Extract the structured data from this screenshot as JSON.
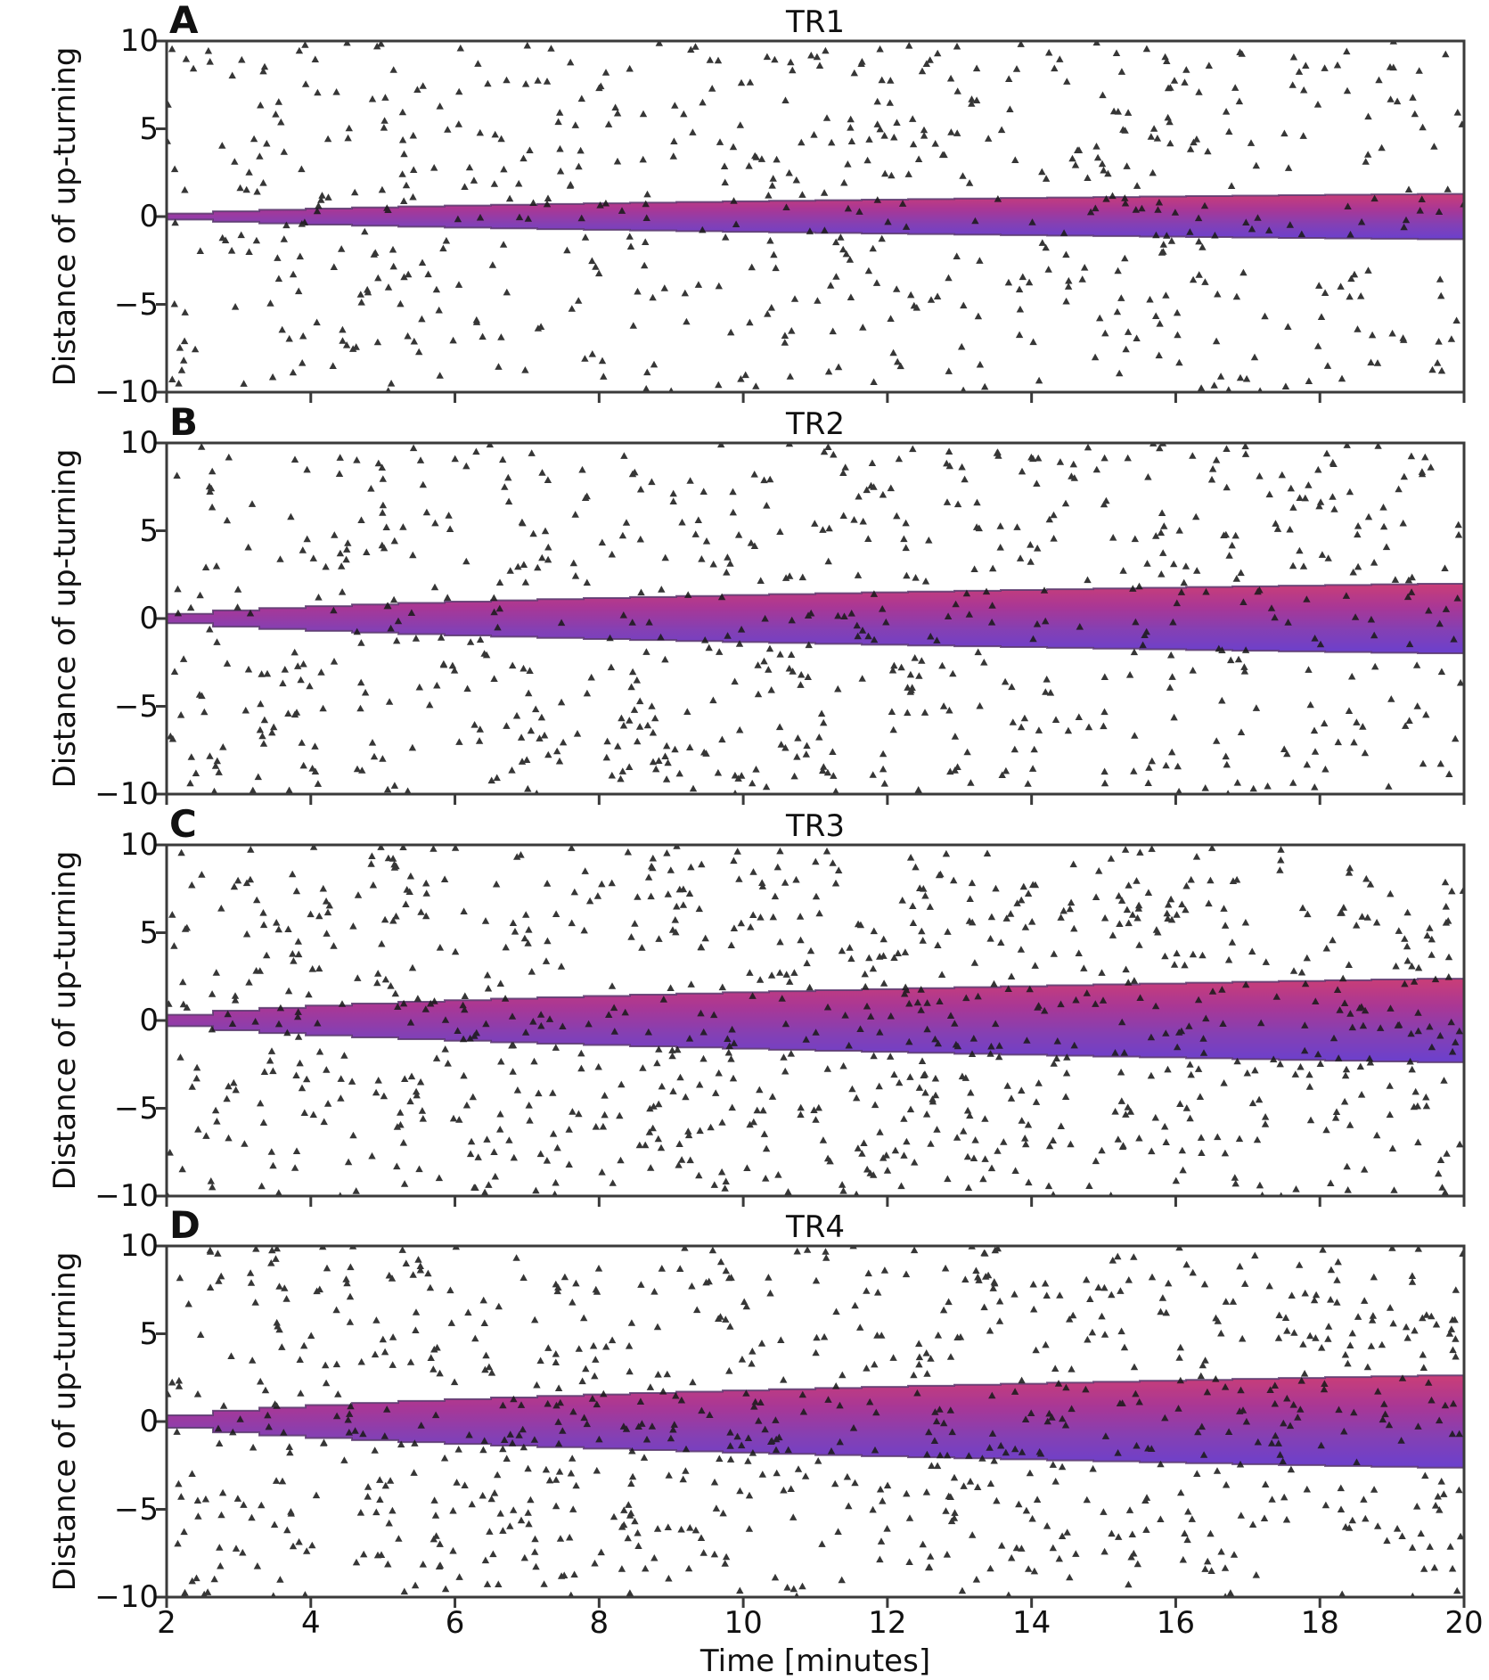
{
  "figure": {
    "background": "#ffffff",
    "frame_color": "#3a3a3a",
    "marker_color": "#1a1a1a",
    "band_edge_color": "#5a3a6e",
    "band_gradient_stops": [
      "#ca3e77",
      "#a93795",
      "#8440b4",
      "#6b40cd"
    ]
  },
  "axes": {
    "x_label": "Time [minutes]",
    "y_label": "Distance of up-turning",
    "x_range": [
      2,
      20
    ],
    "y_range": [
      -10,
      10
    ],
    "x_ticks": [
      2,
      4,
      6,
      8,
      10,
      12,
      14,
      16,
      18,
      20
    ],
    "y_ticks": [
      10,
      5,
      0,
      -5,
      -10
    ],
    "x_tick_labels": [
      "2",
      "4",
      "6",
      "8",
      "10",
      "12",
      "14",
      "16",
      "18",
      "20"
    ],
    "y_tick_labels": [
      "10",
      "5",
      "0",
      "−5",
      "−10"
    ]
  },
  "chart_data": [
    {
      "type": "scatter",
      "panel_letter": "A",
      "title": "TR1",
      "marker": "triangle-up",
      "x_range": [
        2,
        20
      ],
      "y_range": [
        -10,
        10
      ],
      "distribution": "uniform-random",
      "n_points": 620,
      "seed": 7,
      "band": {
        "shape": "stepped-sqrt-fan",
        "start_x": 2,
        "center_y": 0,
        "half_width_at_start": 0,
        "half_width_at_end": 1.3,
        "steps": 28
      }
    },
    {
      "type": "scatter",
      "panel_letter": "B",
      "title": "TR2",
      "marker": "triangle-up",
      "x_range": [
        2,
        20
      ],
      "y_range": [
        -10,
        10
      ],
      "distribution": "uniform-random",
      "n_points": 700,
      "seed": 13,
      "band": {
        "shape": "stepped-sqrt-fan",
        "start_x": 2,
        "center_y": 0,
        "half_width_at_start": 0,
        "half_width_at_end": 2.0,
        "steps": 28
      }
    },
    {
      "type": "scatter",
      "panel_letter": "C",
      "title": "TR3",
      "marker": "triangle-up",
      "x_range": [
        2,
        20
      ],
      "y_range": [
        -10,
        10
      ],
      "distribution": "uniform-random",
      "n_points": 880,
      "seed": 21,
      "band": {
        "shape": "stepped-sqrt-fan",
        "start_x": 2,
        "center_y": 0,
        "half_width_at_start": 0,
        "half_width_at_end": 2.4,
        "steps": 28
      }
    },
    {
      "type": "scatter",
      "panel_letter": "D",
      "title": "TR4",
      "marker": "triangle-up",
      "x_range": [
        2,
        20
      ],
      "y_range": [
        -10,
        10
      ],
      "distribution": "uniform-random",
      "n_points": 840,
      "seed": 29,
      "band": {
        "shape": "stepped-sqrt-fan",
        "start_x": 2,
        "center_y": 0,
        "half_width_at_start": 0,
        "half_width_at_end": 2.65,
        "steps": 28
      }
    }
  ]
}
